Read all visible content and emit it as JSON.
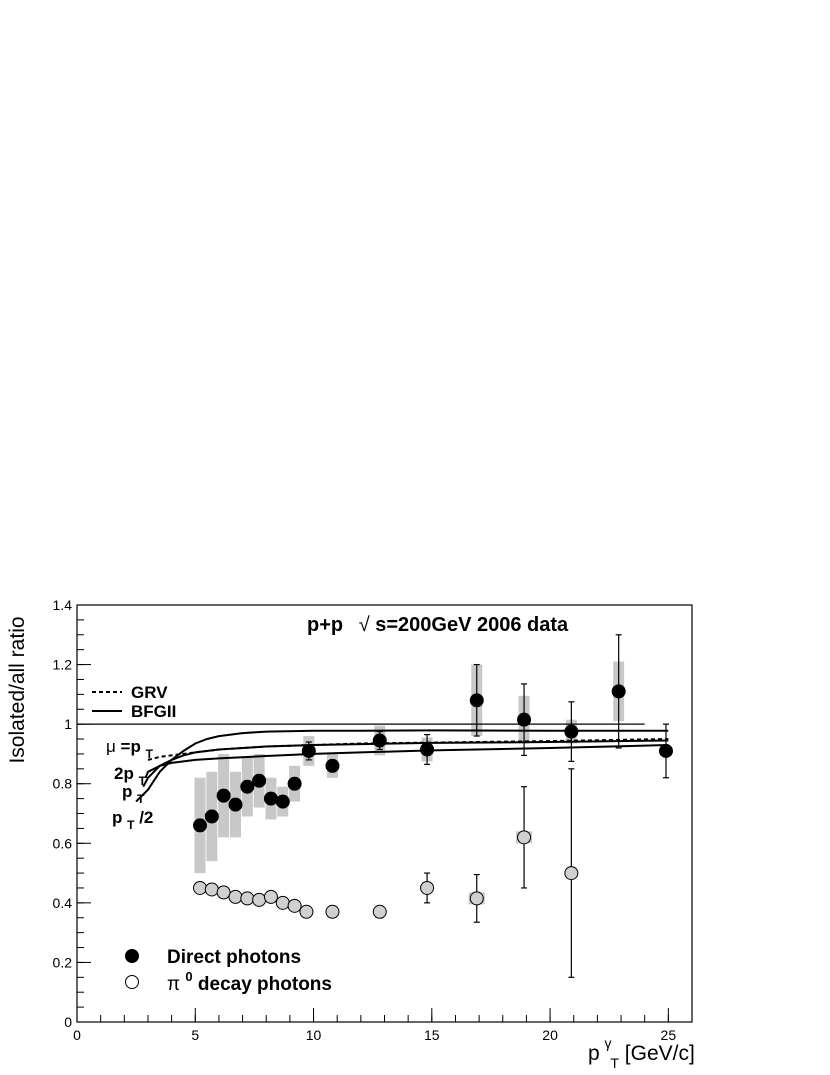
{
  "chart_data": {
    "type": "scatter",
    "title": "p+p  √s=200GeV 2006 data",
    "title_parts": {
      "lead": "p+p",
      "sqrt": "√",
      "rest": "s=200GeV 2006 data"
    },
    "xlabel": {
      "base": "p",
      "sup": "γ",
      "sub": "T",
      "unit": "[GeV/c]"
    },
    "ylabel": "Isolated/all ratio",
    "xlim": [
      0,
      26
    ],
    "ylim": [
      0,
      1.4
    ],
    "xticks": [
      0,
      5,
      10,
      15,
      20,
      25
    ],
    "yticks": [
      0,
      0.2,
      0.4,
      0.6,
      0.8,
      1,
      1.2,
      1.4
    ],
    "ytick_labels": [
      "0",
      "0.2",
      "0.4",
      "0.6",
      "0.8",
      "1",
      "1.2",
      "1.4"
    ],
    "reference_line": {
      "y": 1.0,
      "x_from": 0,
      "x_to": 24
    },
    "legend": {
      "lines": [
        {
          "label": "GRV",
          "style": "dashed"
        },
        {
          "label": "BFGII",
          "style": "solid"
        }
      ],
      "markers": [
        {
          "label": "Direct photons",
          "fill": "#000000"
        },
        {
          "label_sym": "π",
          "label_sup": "0",
          "label_rest": " decay photons",
          "fill": "#ffffff"
        }
      ]
    },
    "scale_labels": {
      "mu": {
        "mu": "μ",
        "eq": "=p",
        "sub": "T"
      },
      "two_pt": {
        "base": "2p",
        "sub": "T"
      },
      "pt": {
        "base": "p",
        "sub": "T"
      },
      "pt_half": {
        "base": "p",
        "sub": "T",
        "rest": "/2"
      }
    },
    "series": [
      {
        "name": "Direct photons",
        "marker_color": "#000000",
        "points": [
          {
            "x": 5.2,
            "y": 0.66,
            "err": 0.02,
            "sys": 0.16
          },
          {
            "x": 5.7,
            "y": 0.69,
            "err": 0.02,
            "sys": 0.15
          },
          {
            "x": 6.2,
            "y": 0.76,
            "err": 0.02,
            "sys": 0.14
          },
          {
            "x": 6.7,
            "y": 0.73,
            "err": 0.02,
            "sys": 0.11
          },
          {
            "x": 7.2,
            "y": 0.79,
            "err": 0.02,
            "sys": 0.1
          },
          {
            "x": 7.7,
            "y": 0.81,
            "err": 0.02,
            "sys": 0.09
          },
          {
            "x": 8.2,
            "y": 0.75,
            "err": 0.02,
            "sys": 0.07
          },
          {
            "x": 8.7,
            "y": 0.74,
            "err": 0.02,
            "sys": 0.05
          },
          {
            "x": 9.2,
            "y": 0.8,
            "err": 0.02,
            "sys": 0.06
          },
          {
            "x": 9.8,
            "y": 0.91,
            "err": 0.03,
            "sys": 0.05
          },
          {
            "x": 10.8,
            "y": 0.86,
            "err": 0.02,
            "sys": 0.04
          },
          {
            "x": 12.8,
            "y": 0.945,
            "err": 0.03,
            "sys": 0.05
          },
          {
            "x": 14.8,
            "y": 0.915,
            "err": 0.05,
            "sys": 0.04
          },
          {
            "x": 16.9,
            "y": 1.08,
            "err": 0.12,
            "sys": 0.12
          },
          {
            "x": 18.9,
            "y": 1.015,
            "err": 0.12,
            "sys": 0.08
          },
          {
            "x": 20.9,
            "y": 0.975,
            "err": 0.1,
            "sys": 0.04
          },
          {
            "x": 22.9,
            "y": 1.11,
            "err": 0.19,
            "sys": 0.1
          },
          {
            "x": 24.9,
            "y": 0.91,
            "err": 0.09,
            "sys": 0.0
          }
        ]
      },
      {
        "name": "π⁰ decay photons",
        "marker_color": "#d0d0d0",
        "points": [
          {
            "x": 5.2,
            "y": 0.45,
            "err": 0.0
          },
          {
            "x": 5.7,
            "y": 0.445,
            "err": 0.0
          },
          {
            "x": 6.2,
            "y": 0.435,
            "err": 0.0
          },
          {
            "x": 6.7,
            "y": 0.42,
            "err": 0.0
          },
          {
            "x": 7.2,
            "y": 0.415,
            "err": 0.0
          },
          {
            "x": 7.7,
            "y": 0.41,
            "err": 0.0
          },
          {
            "x": 8.2,
            "y": 0.42,
            "err": 0.0
          },
          {
            "x": 8.7,
            "y": 0.4,
            "err": 0.0
          },
          {
            "x": 9.2,
            "y": 0.39,
            "err": 0.0
          },
          {
            "x": 9.7,
            "y": 0.37,
            "err": 0.0
          },
          {
            "x": 10.8,
            "y": 0.37,
            "err": 0.0
          },
          {
            "x": 12.8,
            "y": 0.37,
            "err": 0.02
          },
          {
            "x": 14.8,
            "y": 0.45,
            "err": 0.05
          },
          {
            "x": 16.9,
            "y": 0.415,
            "err": 0.08
          },
          {
            "x": 18.9,
            "y": 0.62,
            "err": 0.17
          },
          {
            "x": 20.9,
            "y": 0.5,
            "err": 0.35
          }
        ]
      }
    ],
    "theory_curves": [
      {
        "scale": "pT/2",
        "style": "solid",
        "x": [
          2.5,
          3,
          3.5,
          4,
          4.5,
          5,
          5.5,
          6,
          7,
          8,
          10,
          12,
          15,
          20,
          25
        ],
        "y": [
          0.74,
          0.78,
          0.84,
          0.88,
          0.91,
          0.935,
          0.95,
          0.96,
          0.97,
          0.975,
          0.978,
          0.978,
          0.979,
          0.978,
          0.978
        ]
      },
      {
        "scale": "pT",
        "style": "solid",
        "x": [
          2.8,
          3,
          3.5,
          4,
          4.5,
          5,
          6,
          8,
          10,
          12,
          15,
          20,
          25
        ],
        "y": [
          0.79,
          0.82,
          0.86,
          0.88,
          0.895,
          0.905,
          0.915,
          0.925,
          0.93,
          0.933,
          0.937,
          0.94,
          0.945
        ]
      },
      {
        "scale": "2pT",
        "style": "solid",
        "x": [
          2.9,
          3,
          3.5,
          4,
          4.5,
          5,
          6,
          8,
          10,
          12,
          15,
          20,
          25
        ],
        "y": [
          0.82,
          0.84,
          0.86,
          0.87,
          0.875,
          0.88,
          0.885,
          0.893,
          0.9,
          0.905,
          0.912,
          0.92,
          0.93
        ]
      },
      {
        "scale": "mu=pT",
        "style": "dashed",
        "x": [
          3,
          3.5,
          4,
          5,
          6,
          8,
          10,
          12,
          15,
          20,
          25
        ],
        "y": [
          0.88,
          0.89,
          0.895,
          0.905,
          0.915,
          0.925,
          0.93,
          0.935,
          0.938,
          0.943,
          0.95
        ]
      }
    ]
  }
}
